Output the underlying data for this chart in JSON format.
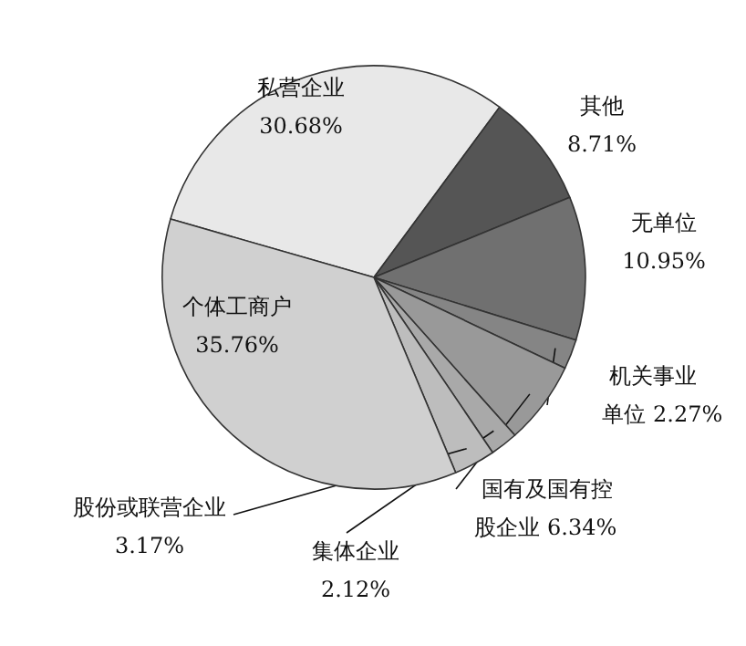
{
  "chart_data": {
    "type": "pie",
    "categories": [
      "私营企业",
      "其他",
      "无单位",
      "机关事业单位",
      "国有及国有控股企业",
      "集体企业",
      "股份或联营企业",
      "个体工商户"
    ],
    "values": [
      30.68,
      8.71,
      10.95,
      2.27,
      6.34,
      2.12,
      3.17,
      35.76
    ],
    "colors": [
      "#e8e8e8",
      "#555555",
      "#707070",
      "#858585",
      "#999999",
      "#a9a9a9",
      "#bdbdbd",
      "#d0d0d0"
    ],
    "value_labels": [
      "30.68%",
      "8.71%",
      "10.95%",
      "2.27%",
      "6.34%",
      "2.12%",
      "3.17%",
      "35.76%"
    ]
  }
}
